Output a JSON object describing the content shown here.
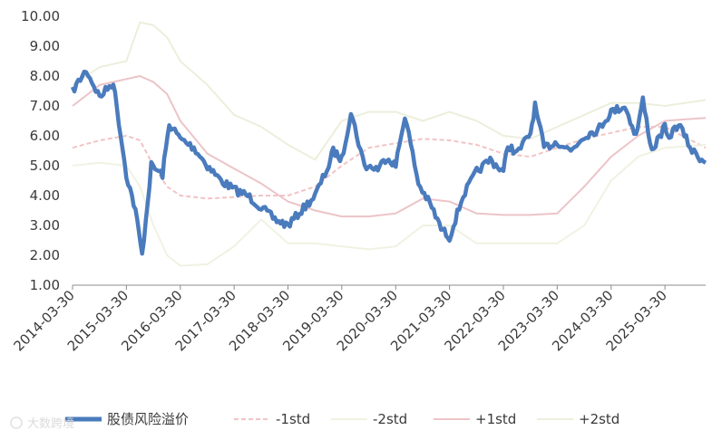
{
  "chart_data": {
    "type": "line",
    "title": "",
    "xlabel": "",
    "ylabel": "",
    "ylim": [
      1.0,
      10.0
    ],
    "y_ticks": [
      "1.00",
      "2.00",
      "3.00",
      "4.00",
      "5.00",
      "6.00",
      "7.00",
      "8.00",
      "9.00",
      "10.00"
    ],
    "x_ticks": [
      "2014-03-30",
      "2015-03-30",
      "2016-03-30",
      "2017-03-30",
      "2018-03-30",
      "2019-03-30",
      "2020-03-30",
      "2021-03-30",
      "2022-03-30",
      "2023-03-30",
      "2024-03-30",
      "2025-03-30"
    ],
    "x_range": [
      "2014-03-30",
      "2025-12-31"
    ],
    "grid": false,
    "legend_position": "bottom",
    "series": [
      {
        "name": "股债风险溢价",
        "color": "#4a7bbd",
        "style": "thick",
        "x": [
          "2014-03-30",
          "2014-06-30",
          "2014-09-30",
          "2014-12-31",
          "2015-03-30",
          "2015-05-31",
          "2015-07-15",
          "2015-09-15",
          "2015-11-30",
          "2016-01-15",
          "2016-03-30",
          "2016-06-30",
          "2016-09-30",
          "2016-12-31",
          "2017-03-30",
          "2017-06-30",
          "2017-09-30",
          "2017-12-31",
          "2018-03-30",
          "2018-06-30",
          "2018-09-30",
          "2018-12-31",
          "2019-01-31",
          "2019-03-30",
          "2019-05-31",
          "2019-08-31",
          "2019-11-30",
          "2020-01-31",
          "2020-03-30",
          "2020-05-31",
          "2020-08-31",
          "2020-11-30",
          "2021-01-31",
          "2021-03-30",
          "2021-06-30",
          "2021-09-30",
          "2021-12-31",
          "2022-03-30",
          "2022-04-30",
          "2022-06-30",
          "2022-09-30",
          "2022-10-31",
          "2022-12-31",
          "2023-03-30",
          "2023-06-30",
          "2023-09-30",
          "2023-12-31",
          "2024-01-31",
          "2024-03-30",
          "2024-06-30",
          "2024-09-15",
          "2024-10-31",
          "2024-12-31",
          "2025-03-30",
          "2025-04-15",
          "2025-06-30",
          "2025-09-30",
          "2025-12-31"
        ],
        "values": [
          7.5,
          8.2,
          7.3,
          7.8,
          4.7,
          3.5,
          2.0,
          5.0,
          4.7,
          6.4,
          5.9,
          5.6,
          5.0,
          4.5,
          4.2,
          4.0,
          3.6,
          3.2,
          3.0,
          3.5,
          4.0,
          5.0,
          5.5,
          5.2,
          6.8,
          5.0,
          4.9,
          5.3,
          5.0,
          6.7,
          4.4,
          3.6,
          2.9,
          2.6,
          4.0,
          4.8,
          5.2,
          4.8,
          5.7,
          5.4,
          6.1,
          7.0,
          5.6,
          5.8,
          5.5,
          6.0,
          6.2,
          6.4,
          6.8,
          7.0,
          6.0,
          7.2,
          5.5,
          6.3,
          5.9,
          6.4,
          5.5,
          5.1
        ]
      },
      {
        "name": "-1std",
        "color": "#f2c4c6",
        "style": "dashed",
        "x": [
          "2014-03-30",
          "2014-09-30",
          "2015-03-30",
          "2015-06-30",
          "2015-09-30",
          "2015-12-31",
          "2016-03-30",
          "2016-09-30",
          "2017-03-30",
          "2017-09-30",
          "2018-03-30",
          "2018-09-30",
          "2019-03-30",
          "2019-09-30",
          "2020-03-30",
          "2020-09-30",
          "2021-03-30",
          "2021-09-30",
          "2022-03-30",
          "2022-09-30",
          "2023-03-30",
          "2023-09-30",
          "2024-03-30",
          "2024-09-30",
          "2025-03-30",
          "2025-12-31"
        ],
        "values": [
          5.6,
          5.85,
          6.0,
          5.85,
          5.0,
          4.3,
          4.0,
          3.9,
          3.95,
          4.0,
          4.0,
          4.3,
          5.0,
          5.6,
          5.75,
          5.9,
          5.85,
          5.7,
          5.4,
          5.3,
          5.6,
          5.9,
          6.1,
          6.3,
          6.3,
          5.6
        ]
      },
      {
        "name": "-2std",
        "color": "#f0f2e2",
        "style": "solid",
        "x": [
          "2014-03-30",
          "2014-09-30",
          "2015-03-30",
          "2015-06-30",
          "2015-09-30",
          "2015-12-31",
          "2016-03-30",
          "2016-09-30",
          "2017-03-30",
          "2017-09-30",
          "2018-03-30",
          "2018-09-30",
          "2019-03-30",
          "2019-09-30",
          "2020-03-30",
          "2020-09-30",
          "2021-03-30",
          "2021-09-30",
          "2022-03-30",
          "2022-09-30",
          "2023-03-30",
          "2023-09-30",
          "2024-03-30",
          "2024-09-30",
          "2025-03-30",
          "2025-12-31"
        ],
        "values": [
          5.0,
          5.1,
          5.0,
          4.3,
          3.0,
          2.0,
          1.65,
          1.7,
          2.3,
          3.2,
          2.4,
          2.4,
          2.3,
          2.2,
          2.3,
          3.0,
          3.0,
          2.4,
          2.4,
          2.4,
          2.4,
          3.0,
          4.5,
          5.3,
          5.6,
          5.7
        ]
      },
      {
        "name": "+1std",
        "color": "#ecc4c8",
        "style": "solid",
        "x": [
          "2014-03-30",
          "2014-09-30",
          "2015-03-30",
          "2015-06-30",
          "2015-09-30",
          "2015-12-31",
          "2016-03-30",
          "2016-09-30",
          "2017-03-30",
          "2017-09-30",
          "2018-03-30",
          "2018-09-30",
          "2019-03-30",
          "2019-09-30",
          "2020-03-30",
          "2020-09-30",
          "2021-03-30",
          "2021-09-30",
          "2022-03-30",
          "2022-09-30",
          "2023-03-30",
          "2023-09-30",
          "2024-03-30",
          "2024-09-30",
          "2025-03-30",
          "2025-12-31"
        ],
        "values": [
          7.0,
          7.7,
          7.9,
          8.0,
          7.8,
          7.4,
          6.5,
          5.4,
          4.9,
          4.4,
          3.8,
          3.5,
          3.3,
          3.3,
          3.4,
          3.9,
          3.8,
          3.4,
          3.35,
          3.35,
          3.4,
          4.3,
          5.3,
          6.0,
          6.5,
          6.6
        ]
      },
      {
        "name": "+2std",
        "color": "#ecefdc",
        "style": "solid",
        "x": [
          "2014-03-30",
          "2014-09-30",
          "2015-03-30",
          "2015-06-30",
          "2015-09-30",
          "2015-12-31",
          "2016-03-30",
          "2016-09-30",
          "2017-03-30",
          "2017-09-30",
          "2018-03-30",
          "2018-09-30",
          "2019-03-30",
          "2019-09-30",
          "2020-03-30",
          "2020-09-30",
          "2021-03-30",
          "2021-09-30",
          "2022-03-30",
          "2022-09-30",
          "2023-03-30",
          "2023-09-30",
          "2024-03-30",
          "2024-09-30",
          "2025-03-30",
          "2025-12-31"
        ],
        "values": [
          7.7,
          8.3,
          8.5,
          9.8,
          9.7,
          9.3,
          8.5,
          7.7,
          6.7,
          6.3,
          5.7,
          5.2,
          6.5,
          6.8,
          6.8,
          6.5,
          6.8,
          6.5,
          6.0,
          5.9,
          6.3,
          6.7,
          7.1,
          7.1,
          7.0,
          7.2
        ]
      }
    ]
  },
  "watermark": "大数跨境"
}
